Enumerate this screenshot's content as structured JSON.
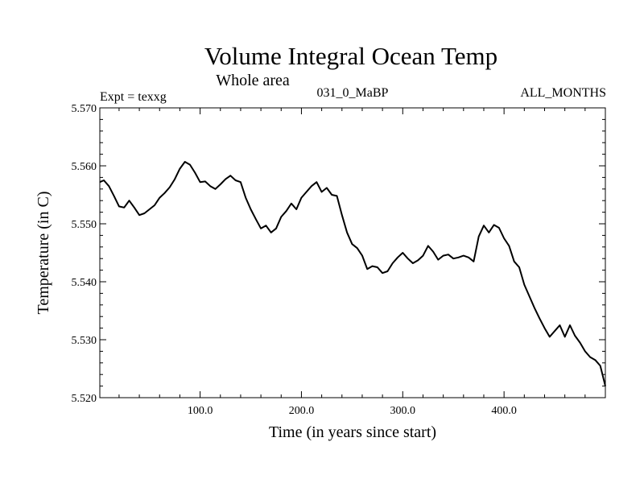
{
  "chart_data": {
    "type": "line",
    "title": "Volume Integral Ocean Temp",
    "subtitle": "Whole area",
    "header_left": "Expt = texxg",
    "header_center": "031_0_MaBP",
    "header_right": "ALL_MONTHS",
    "xlabel": "Time (in years since start)",
    "ylabel": "Temperature (in C)",
    "xlim": [
      1,
      500
    ],
    "ylim": [
      5.52,
      5.57
    ],
    "xticks": [
      100,
      200,
      300,
      400
    ],
    "xtick_labels": [
      "100.0",
      "200.0",
      "300.0",
      "400.0"
    ],
    "yticks": [
      5.52,
      5.53,
      5.54,
      5.55,
      5.56,
      5.57
    ],
    "ytick_labels": [
      "5.520",
      "5.530",
      "5.540",
      "5.550",
      "5.560",
      "5.570"
    ],
    "series": [
      {
        "name": "Volume integral ocean temperature",
        "x": [
          1,
          5,
          10,
          15,
          20,
          25,
          30,
          35,
          40,
          45,
          50,
          55,
          60,
          65,
          70,
          75,
          80,
          85,
          90,
          95,
          100,
          105,
          110,
          115,
          120,
          125,
          130,
          135,
          140,
          145,
          150,
          155,
          160,
          165,
          170,
          175,
          180,
          185,
          190,
          195,
          200,
          205,
          210,
          215,
          220,
          225,
          230,
          235,
          240,
          245,
          250,
          255,
          260,
          265,
          270,
          275,
          280,
          285,
          290,
          295,
          300,
          305,
          310,
          315,
          320,
          325,
          330,
          335,
          340,
          345,
          350,
          355,
          360,
          365,
          370,
          375,
          380,
          385,
          390,
          395,
          400,
          405,
          410,
          415,
          420,
          425,
          430,
          435,
          440,
          445,
          450,
          455,
          460,
          465,
          470,
          475,
          480,
          485,
          490,
          495,
          500
        ],
        "values": [
          5.5572,
          5.5575,
          5.5565,
          5.5548,
          5.553,
          5.5528,
          5.554,
          5.5528,
          5.5515,
          5.5518,
          5.5525,
          5.5532,
          5.5545,
          5.5553,
          5.5563,
          5.5577,
          5.5595,
          5.5607,
          5.5602,
          5.5588,
          5.5572,
          5.5573,
          5.5565,
          5.556,
          5.5568,
          5.5577,
          5.5583,
          5.5575,
          5.5572,
          5.5545,
          5.5525,
          5.5508,
          5.5492,
          5.5497,
          5.5485,
          5.5492,
          5.5512,
          5.5522,
          5.5535,
          5.5525,
          5.5545,
          5.5555,
          5.5565,
          5.5572,
          5.5555,
          5.5562,
          5.555,
          5.5548,
          5.5515,
          5.5485,
          5.5465,
          5.5458,
          5.5445,
          5.5422,
          5.5427,
          5.5425,
          5.5415,
          5.5418,
          5.5432,
          5.5442,
          5.545,
          5.544,
          5.5432,
          5.5437,
          5.5445,
          5.5462,
          5.5452,
          5.5438,
          5.5445,
          5.5447,
          5.544,
          5.5442,
          5.5445,
          5.5442,
          5.5435,
          5.5478,
          5.5497,
          5.5485,
          5.5498,
          5.5493,
          5.5475,
          5.5462,
          5.5435,
          5.5425,
          5.5395,
          5.5375,
          5.5355,
          5.5337,
          5.532,
          5.5305,
          5.5315,
          5.5325,
          5.5305,
          5.5325,
          5.5307,
          5.5295,
          5.528,
          5.527,
          5.5265,
          5.5255,
          5.522
        ]
      }
    ]
  }
}
